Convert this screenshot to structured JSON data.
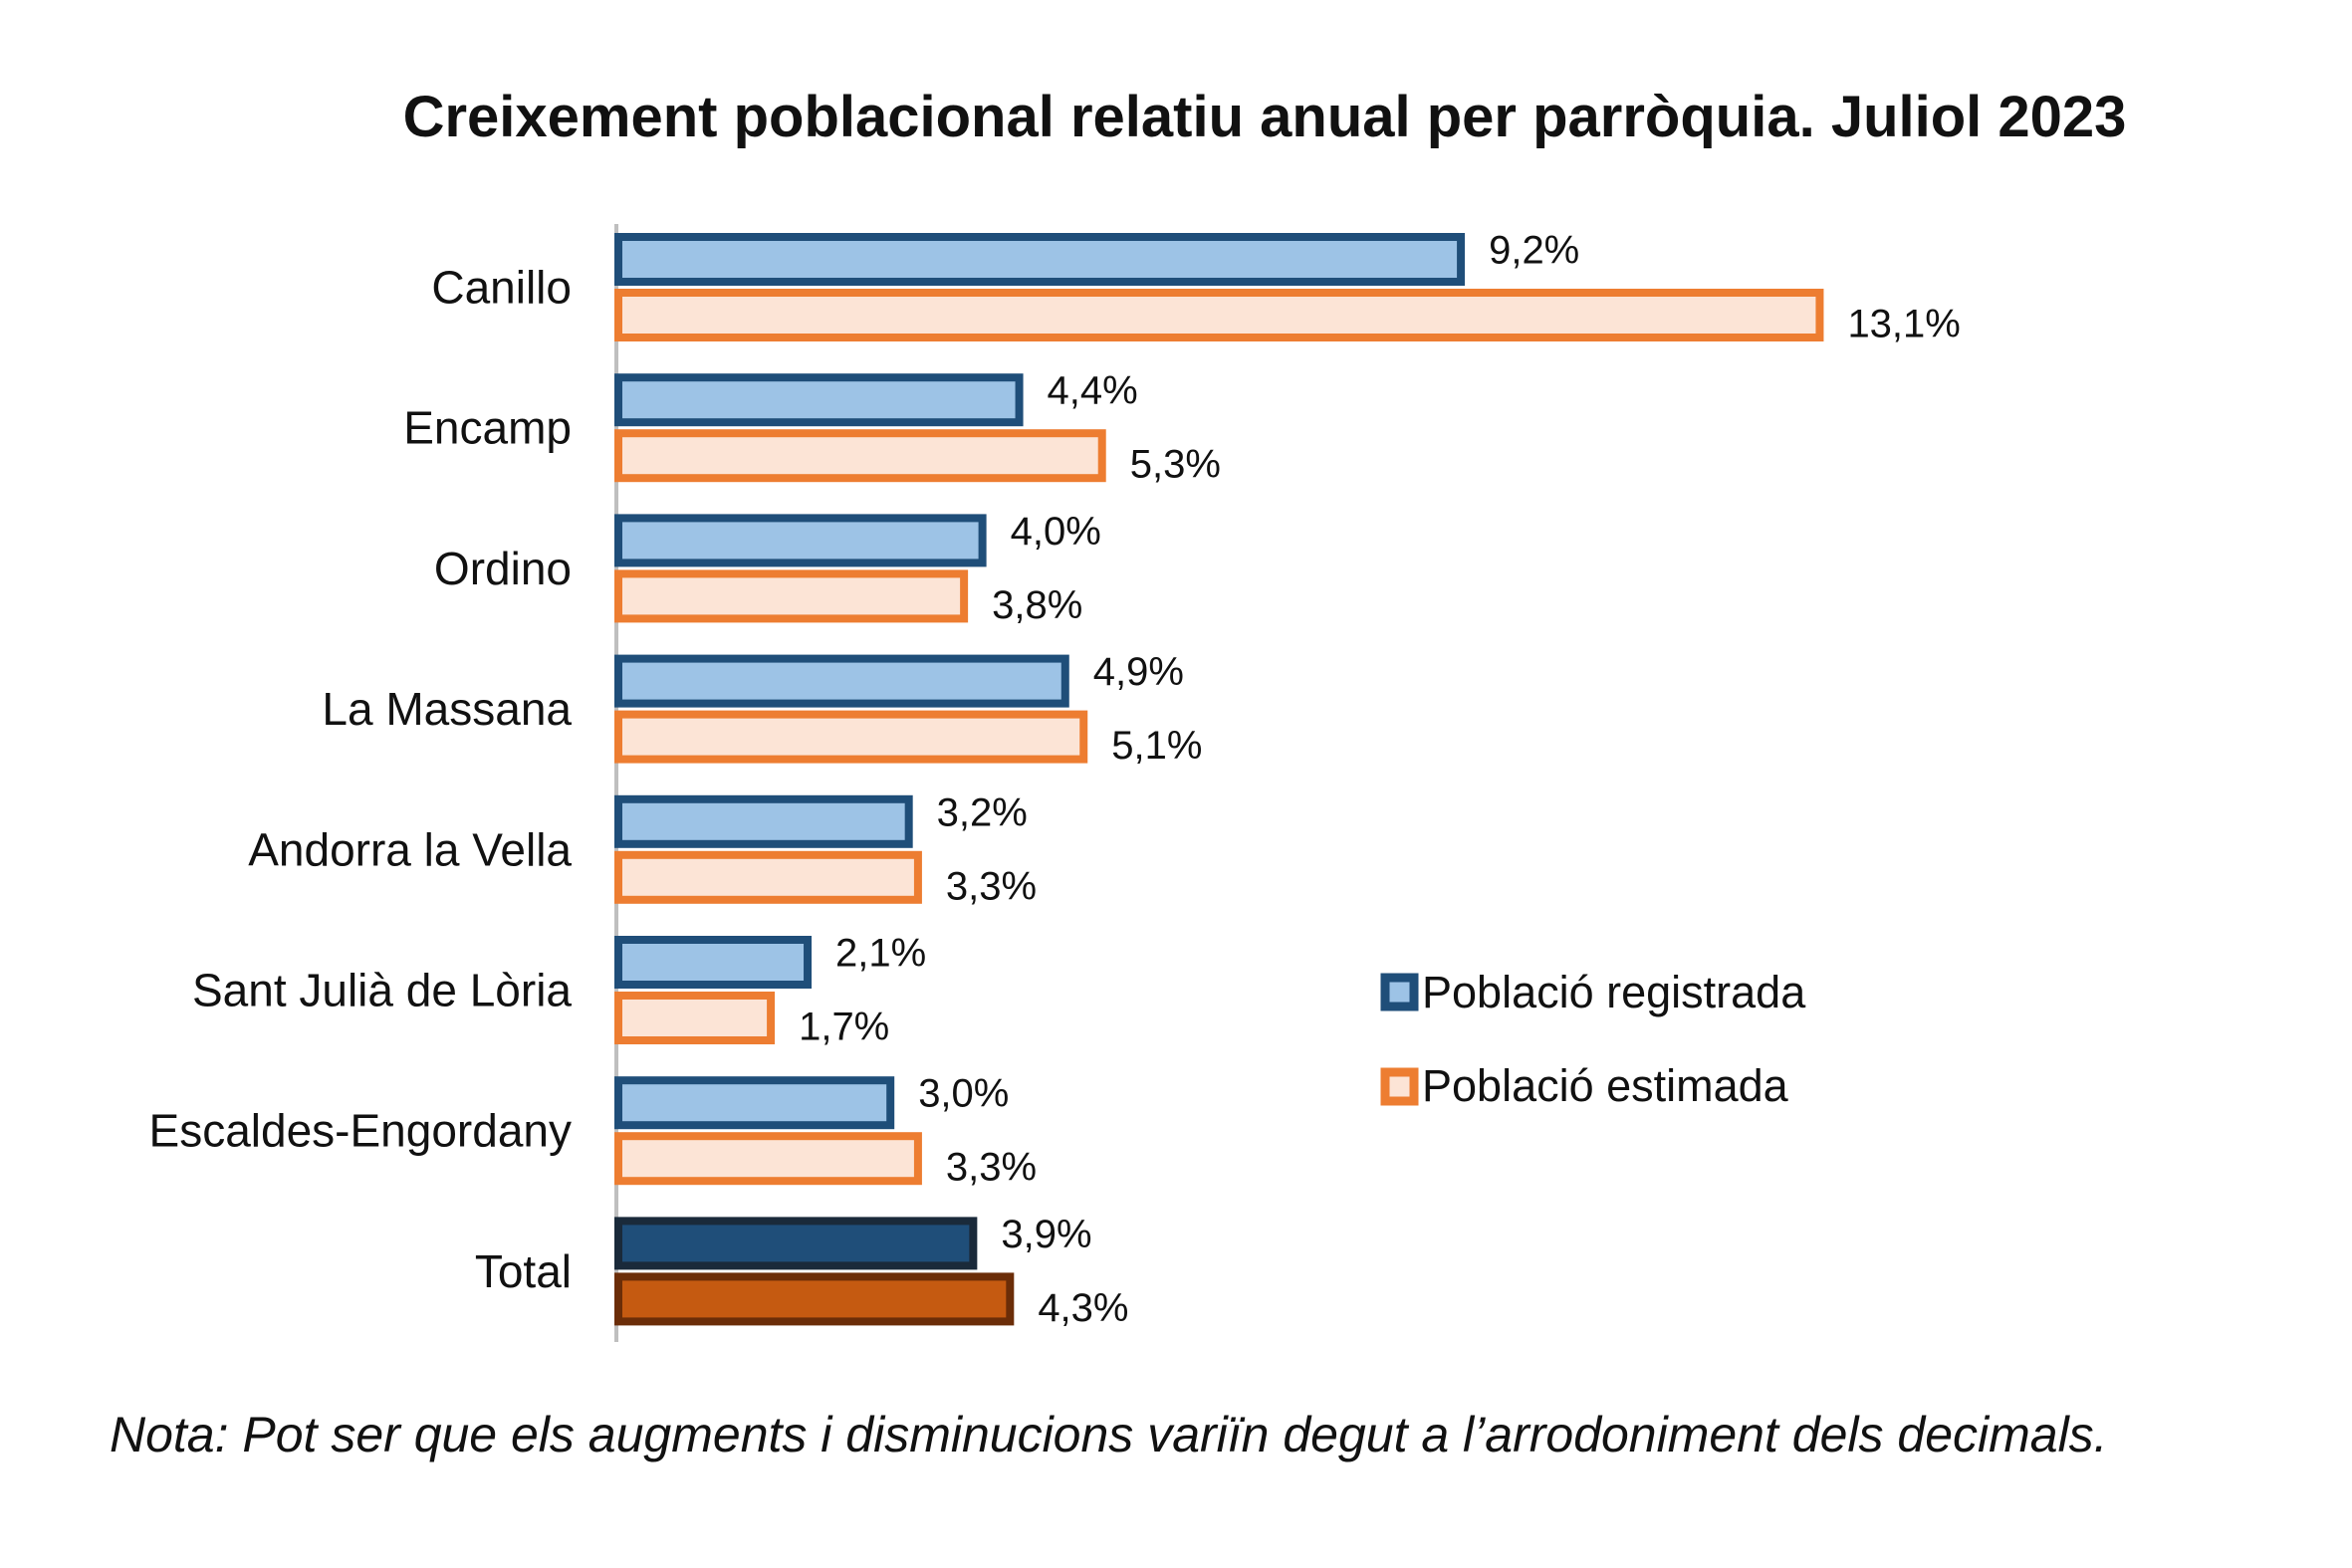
{
  "chart_data": {
    "type": "bar",
    "orientation": "horizontal",
    "title": "Creixement poblacional relatiu anual per parròquia. Juliol 2023",
    "categories": [
      "Canillo",
      "Encamp",
      "Ordino",
      "La Massana",
      "Andorra la Vella",
      "Sant Julià de Lòria",
      "Escaldes-Engordany",
      "Total"
    ],
    "series": [
      {
        "name": "Població registrada",
        "values": [
          9.2,
          4.4,
          4.0,
          4.9,
          3.2,
          2.1,
          3.0,
          3.9
        ],
        "labels": [
          "9,2%",
          "4,4%",
          "4,0%",
          "4,9%",
          "3,2%",
          "2,1%",
          "3,0%",
          "3,9%"
        ],
        "fill": "#9dc3e6",
        "stroke": "#1f4e79",
        "total_fill": "#1f4e79",
        "total_stroke": "#1a2a3a"
      },
      {
        "name": "Població estimada",
        "values": [
          13.1,
          5.3,
          3.8,
          5.1,
          3.3,
          1.7,
          3.3,
          4.3
        ],
        "labels": [
          "13,1%",
          "5,3%",
          "3,8%",
          "5,1%",
          "3,3%",
          "1,7%",
          "3,3%",
          "4,3%"
        ],
        "fill": "#fce4d6",
        "stroke": "#ed7d31",
        "total_fill": "#c55a11",
        "total_stroke": "#6b2d08"
      }
    ],
    "xlim": [
      0,
      14
    ],
    "grid": false,
    "legend_position": "right"
  },
  "note": "Nota: Pot ser que els augments i disminucions variïn degut a l’arrodoniment dels decimals."
}
